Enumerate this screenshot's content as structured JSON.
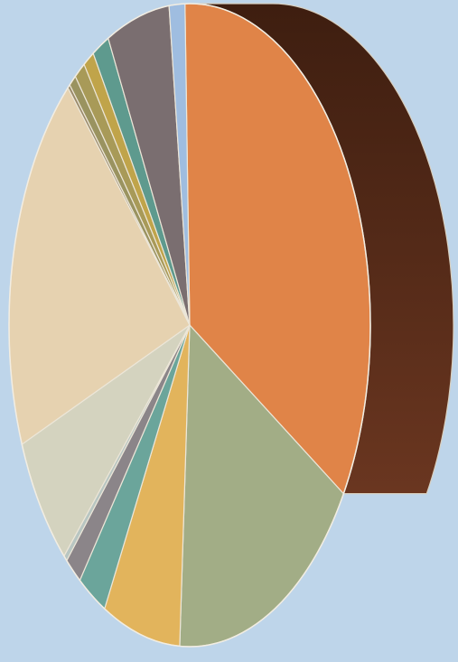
{
  "background": "#bed5ea",
  "chart_data": {
    "type": "pie",
    "style": "3d-tilted",
    "title": "",
    "legend": "none",
    "data_labels": "none",
    "values": [
      31.6,
      15.8,
      6.4,
      2.4,
      1.4,
      0.3,
      6.2,
      17.8,
      0.2,
      0.6,
      0.9,
      0.9,
      1.4,
      5.2,
      1.3
    ],
    "colors": [
      "#e08448",
      "#a2ad86",
      "#e2b45c",
      "#6ba59b",
      "#8b8589",
      "#b8c6c2",
      "#d4d3bf",
      "#e6d2b0",
      "#9a8a6a",
      "#9a9360",
      "#a89a58",
      "#c0a44a",
      "#5e9a8e",
      "#7a6e70",
      "#9fbde0"
    ],
    "side_colors": {
      "0": [
        "#3e1e10",
        "#6a3620"
      ],
      "1": [
        "#4e5a40",
        "#8a9068"
      ],
      "2": [
        "#8a6a30",
        "#b89a4e"
      ],
      "3": [
        "#4a706a",
        "#5f8a80"
      ]
    }
  }
}
